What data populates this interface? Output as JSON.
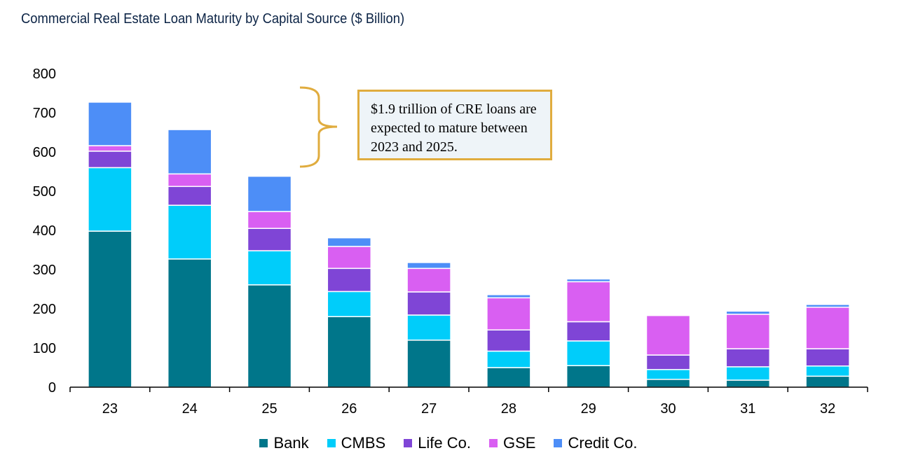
{
  "chart_data": {
    "type": "bar",
    "stacked": true,
    "title": "Commercial Real Estate Loan Maturity by Capital Source ($ Billion)",
    "categories": [
      "23",
      "24",
      "25",
      "26",
      "27",
      "28",
      "29",
      "30",
      "31",
      "32"
    ],
    "ylim": [
      0,
      800
    ],
    "yticks": [
      0,
      100,
      200,
      300,
      400,
      500,
      600,
      700,
      800
    ],
    "grid": false,
    "legend_position": "bottom",
    "series": [
      {
        "name": "Bank",
        "color": "#00768a",
        "values": [
          398,
          327,
          261,
          180,
          120,
          50,
          55,
          20,
          18,
          28
        ]
      },
      {
        "name": "CMBS",
        "color": "#00cdfa",
        "values": [
          162,
          137,
          87,
          64,
          64,
          42,
          63,
          25,
          34,
          26
        ]
      },
      {
        "name": "Life Co.",
        "color": "#7f45d6",
        "values": [
          42,
          48,
          57,
          59,
          59,
          54,
          49,
          37,
          46,
          44
        ]
      },
      {
        "name": "GSE",
        "color": "#d95ff2",
        "values": [
          14,
          32,
          43,
          56,
          60,
          82,
          102,
          101,
          88,
          106
        ]
      },
      {
        "name": "Credit Co.",
        "color": "#4d8ef7",
        "values": [
          111,
          113,
          90,
          22,
          15,
          8,
          7,
          2,
          8,
          7
        ]
      }
    ],
    "annotation": "$1.9 trillion of CRE loans are expected to mature between 2023 and 2025."
  }
}
